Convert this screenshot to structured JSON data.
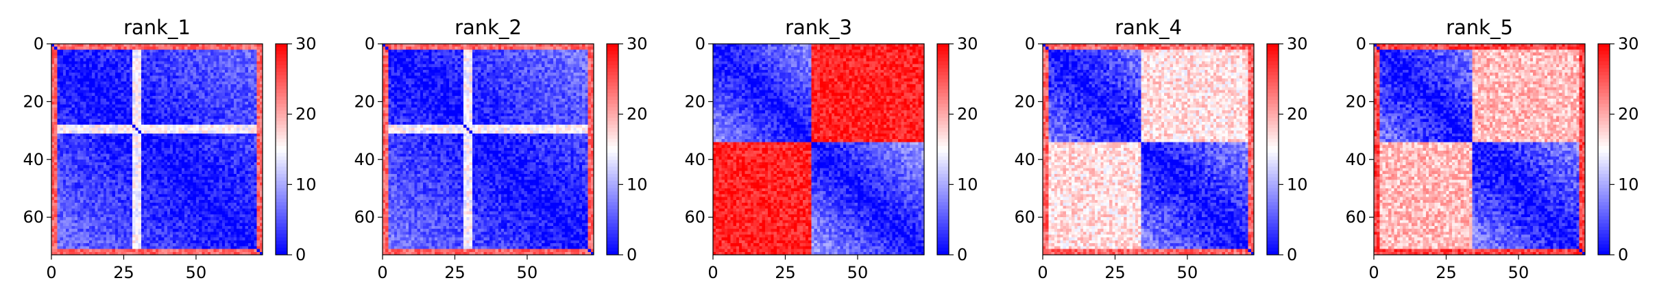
{
  "chart_data": [
    {
      "type": "heatmap",
      "title": "rank_1",
      "matrix_size": 73,
      "xticks": [
        "0",
        "25",
        "50"
      ],
      "yticks": [
        "0",
        "20",
        "40",
        "60"
      ],
      "colorbar": {
        "min": 0,
        "max": 30,
        "ticks": [
          "0",
          "10",
          "20",
          "30"
        ],
        "colormap": "bwr"
      },
      "domains": [
        {
          "start": 0,
          "end": 72
        }
      ],
      "features": {
        "inter_domain_value": 0,
        "noise_level": 3,
        "border_hot": 24,
        "diag_base": 1,
        "intra_slope": 0.08,
        "intra_max": 11,
        "hot_bands": [
          28,
          29,
          30
        ]
      }
    },
    {
      "type": "heatmap",
      "title": "rank_2",
      "matrix_size": 73,
      "xticks": [
        "0",
        "25",
        "50"
      ],
      "yticks": [
        "0",
        "20",
        "40",
        "60"
      ],
      "colorbar": {
        "min": 0,
        "max": 30,
        "ticks": [
          "0",
          "10",
          "20",
          "30"
        ],
        "colormap": "bwr"
      },
      "domains": [
        {
          "start": 0,
          "end": 72
        }
      ],
      "features": {
        "inter_domain_value": 0,
        "noise_level": 3,
        "border_hot": 24,
        "diag_base": 1,
        "intra_slope": 0.09,
        "intra_max": 12,
        "hot_bands": [
          28,
          29,
          30
        ]
      }
    },
    {
      "type": "heatmap",
      "title": "rank_3",
      "matrix_size": 73,
      "xticks": [
        "0",
        "25",
        "50"
      ],
      "yticks": [
        "0",
        "20",
        "40",
        "60"
      ],
      "colorbar": {
        "min": 0,
        "max": 30,
        "ticks": [
          "0",
          "10",
          "20",
          "30"
        ],
        "colormap": "bwr"
      },
      "domains": [
        {
          "start": 0,
          "end": 33
        },
        {
          "start": 34,
          "end": 72
        }
      ],
      "features": {
        "inter_domain_value": 28,
        "noise_level": 3,
        "border_hot": 0,
        "diag_base": 1,
        "intra_slope": 0.22,
        "intra_max": 14,
        "hot_bands": []
      }
    },
    {
      "type": "heatmap",
      "title": "rank_4",
      "matrix_size": 73,
      "xticks": [
        "0",
        "25",
        "50"
      ],
      "yticks": [
        "0",
        "20",
        "40",
        "60"
      ],
      "colorbar": {
        "min": 0,
        "max": 30,
        "ticks": [
          "0",
          "10",
          "20",
          "30"
        ],
        "colormap": "bwr"
      },
      "domains": [
        {
          "start": 0,
          "end": 33
        },
        {
          "start": 34,
          "end": 72
        }
      ],
      "features": {
        "inter_domain_value": 17,
        "noise_level": 3.5,
        "border_hot": 24,
        "diag_base": 1,
        "intra_slope": 0.2,
        "intra_max": 14,
        "hot_bands": []
      }
    },
    {
      "type": "heatmap",
      "title": "rank_5",
      "matrix_size": 73,
      "xticks": [
        "0",
        "25",
        "50"
      ],
      "yticks": [
        "0",
        "20",
        "40",
        "60"
      ],
      "colorbar": {
        "min": 0,
        "max": 30,
        "ticks": [
          "0",
          "10",
          "20",
          "30"
        ],
        "colormap": "bwr"
      },
      "domains": [
        {
          "start": 0,
          "end": 33
        },
        {
          "start": 34,
          "end": 72
        }
      ],
      "features": {
        "inter_domain_value": 19,
        "noise_level": 3.5,
        "border_hot": 26,
        "diag_base": 1,
        "intra_slope": 0.2,
        "intra_max": 14,
        "hot_bands": []
      }
    }
  ]
}
